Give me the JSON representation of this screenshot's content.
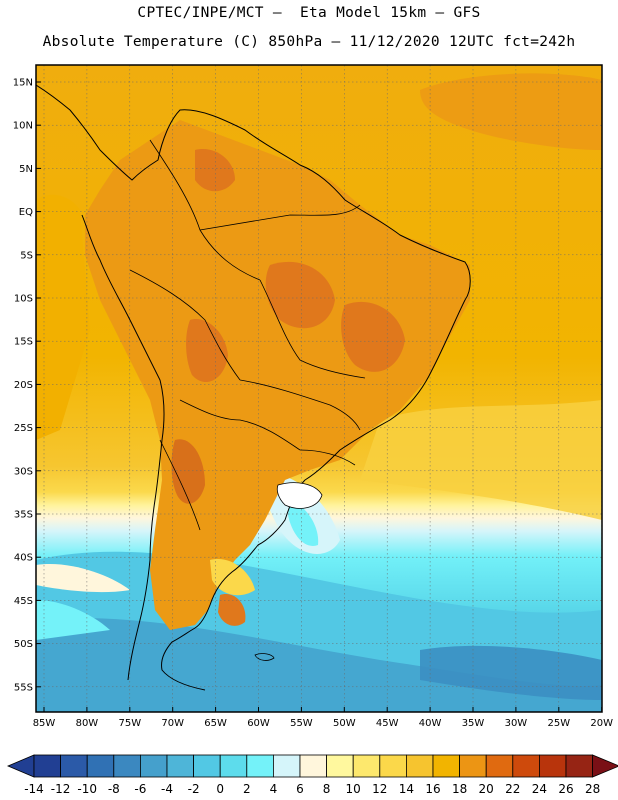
{
  "header": {
    "line1": "CPTEC/INPE/MCT –  Eta Model 15km – GFS",
    "line2": "Absolute Temperature (C) 850hPa – 11/12/2020 12UTC fct=242h"
  },
  "map": {
    "lat_labels": [
      "15N",
      "10N",
      "5N",
      "EQ",
      "5S",
      "10S",
      "15S",
      "20S",
      "25S",
      "30S",
      "35S",
      "40S",
      "45S",
      "50S",
      "55S"
    ],
    "lon_labels": [
      "85W",
      "80W",
      "75W",
      "70W",
      "65W",
      "60W",
      "55W",
      "50W",
      "45W",
      "40W",
      "35W",
      "30W",
      "25W",
      "20W"
    ],
    "gridlines": "dotted",
    "colors": {
      "ocean_north": "#f2b400",
      "continent": "#ec9a14",
      "hot_core": "#e0781c",
      "cold_south": "#3ca9cc"
    }
  },
  "colorbar": {
    "ticks": [
      "-14",
      "-12",
      "-10",
      "-8",
      "-6",
      "-4",
      "-2",
      "0",
      "2",
      "4",
      "6",
      "8",
      "10",
      "12",
      "14",
      "16",
      "18",
      "20",
      "22",
      "24",
      "26",
      "28"
    ],
    "colors": [
      "#213f93",
      "#2b5aa8",
      "#3071b4",
      "#3b88c0",
      "#45a0cc",
      "#4eb5d8",
      "#52c8e4",
      "#5ddcec",
      "#74f2f9",
      "#d5f5fa",
      "#fff6dc",
      "#fff89e",
      "#fde86d",
      "#fbd84a",
      "#f6c42f",
      "#f2b400",
      "#ec9514",
      "#e06a10",
      "#ce4a0c",
      "#b8340c",
      "#962414",
      "#7a1016"
    ]
  }
}
